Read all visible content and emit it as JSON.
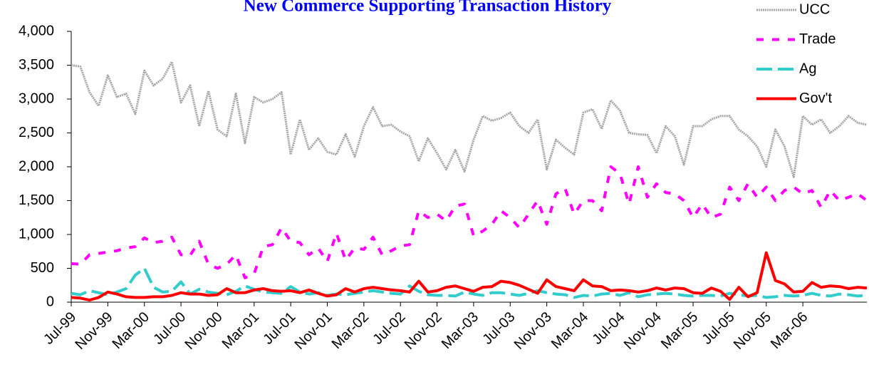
{
  "chart_data": {
    "type": "line",
    "title": "New Commerce Supporting Transaction History",
    "categories": [
      "Jul-99",
      null,
      null,
      null,
      "Nov-99",
      null,
      null,
      null,
      "Mar-00",
      null,
      null,
      null,
      "Jul-00",
      null,
      null,
      null,
      "Nov-00",
      null,
      null,
      null,
      "Mar-01",
      null,
      null,
      null,
      "Jul-01",
      null,
      null,
      null,
      "Nov-01",
      null,
      null,
      null,
      "Mar-02",
      null,
      null,
      null,
      "Jul-02",
      null,
      null,
      null,
      "Nov-02",
      null,
      null,
      null,
      "Mar-03",
      null,
      null,
      null,
      "Jul-03",
      null,
      null,
      null,
      "Nov-03",
      null,
      null,
      null,
      "Mar-04",
      null,
      null,
      null,
      "Jul-04",
      null,
      null,
      null,
      "Nov-04",
      null,
      null,
      null,
      "Mar-05",
      null,
      null,
      null,
      "Jul-05",
      null,
      null,
      null,
      "Nov-05",
      null,
      null,
      null,
      "Mar-06",
      null,
      null,
      null,
      null,
      null,
      null,
      null
    ],
    "series": [
      {
        "name": "UCC",
        "color": "#a6a6a6",
        "style": "textured",
        "values": [
          3500,
          3480,
          3100,
          2900,
          3350,
          3030,
          3080,
          2780,
          3420,
          3200,
          3300,
          3550,
          2950,
          3200,
          2600,
          3120,
          2550,
          2450,
          3080,
          2350,
          3030,
          2950,
          3000,
          3100,
          2180,
          2700,
          2250,
          2420,
          2220,
          2180,
          2480,
          2150,
          2600,
          2880,
          2600,
          2620,
          2520,
          2450,
          2080,
          2420,
          2200,
          1960,
          2250,
          1930,
          2400,
          2750,
          2680,
          2720,
          2800,
          2600,
          2500,
          2700,
          1960,
          2400,
          2280,
          2180,
          2800,
          2850,
          2560,
          2980,
          2830,
          2500,
          2480,
          2470,
          2200,
          2600,
          2450,
          2030,
          2600,
          2600,
          2700,
          2750,
          2750,
          2550,
          2450,
          2300,
          2000,
          2550,
          2300,
          1850,
          2750,
          2620,
          2700,
          2500,
          2600,
          2750,
          2650,
          2620
        ]
      },
      {
        "name": "Trade",
        "color": "#ff00ff",
        "style": "dashed",
        "values": [
          570,
          560,
          700,
          720,
          740,
          760,
          800,
          820,
          950,
          880,
          900,
          960,
          700,
          690,
          900,
          560,
          500,
          560,
          700,
          360,
          420,
          820,
          850,
          1100,
          900,
          880,
          700,
          800,
          600,
          1020,
          620,
          800,
          780,
          960,
          700,
          760,
          830,
          850,
          1350,
          1250,
          1300,
          1200,
          1420,
          1450,
          980,
          1050,
          1150,
          1350,
          1250,
          1100,
          1300,
          1500,
          1150,
          1600,
          1680,
          1300,
          1500,
          1500,
          1350,
          2000,
          1900,
          1450,
          2000,
          1550,
          1750,
          1620,
          1600,
          1500,
          1250,
          1450,
          1250,
          1300,
          1700,
          1500,
          1750,
          1550,
          1700,
          1500,
          1650,
          1700,
          1600,
          1650,
          1400,
          1650,
          1500,
          1550,
          1600,
          1500
        ]
      },
      {
        "name": "Ag",
        "color": "#33cccc",
        "style": "longdash",
        "values": [
          130,
          110,
          170,
          140,
          110,
          150,
          200,
          400,
          500,
          220,
          150,
          160,
          300,
          120,
          190,
          150,
          130,
          110,
          160,
          240,
          190,
          150,
          140,
          130,
          230,
          150,
          120,
          140,
          100,
          120,
          110,
          130,
          150,
          170,
          150,
          130,
          120,
          240,
          160,
          110,
          100,
          100,
          90,
          150,
          120,
          100,
          140,
          140,
          120,
          100,
          130,
          170,
          140,
          120,
          110,
          70,
          100,
          90,
          120,
          130,
          100,
          140,
          80,
          110,
          120,
          130,
          120,
          100,
          90,
          100,
          100,
          90,
          130,
          110,
          90,
          100,
          70,
          80,
          100,
          90,
          100,
          130,
          100,
          90,
          120,
          110,
          90,
          100
        ]
      },
      {
        "name": "Gov't",
        "color": "#ff0000",
        "style": "solid",
        "values": [
          70,
          60,
          30,
          70,
          150,
          120,
          80,
          70,
          70,
          80,
          80,
          100,
          140,
          120,
          120,
          100,
          110,
          200,
          140,
          140,
          180,
          200,
          170,
          160,
          170,
          140,
          180,
          130,
          90,
          110,
          200,
          150,
          200,
          220,
          200,
          180,
          170,
          150,
          310,
          150,
          170,
          220,
          240,
          200,
          160,
          220,
          230,
          310,
          290,
          250,
          190,
          130,
          330,
          230,
          200,
          170,
          330,
          240,
          230,
          170,
          180,
          170,
          150,
          170,
          210,
          180,
          210,
          200,
          140,
          130,
          210,
          160,
          40,
          220,
          80,
          140,
          730,
          320,
          270,
          150,
          160,
          290,
          220,
          240,
          230,
          200,
          220,
          210
        ]
      }
    ],
    "ylim": [
      0,
      4000
    ],
    "yticks": [
      0,
      500,
      {
        "value": 1000,
        "label": "1,000"
      },
      {
        "value": 1500,
        "label": "1,500"
      },
      {
        "value": 2000,
        "label": "2,000"
      },
      {
        "value": 2500,
        "label": "2,500"
      },
      {
        "value": 3000,
        "label": "3,000"
      },
      {
        "value": 3500,
        "label": "3,500"
      },
      {
        "value": 4000,
        "label": "4,000"
      }
    ],
    "grid": false,
    "legend": "upper right"
  }
}
